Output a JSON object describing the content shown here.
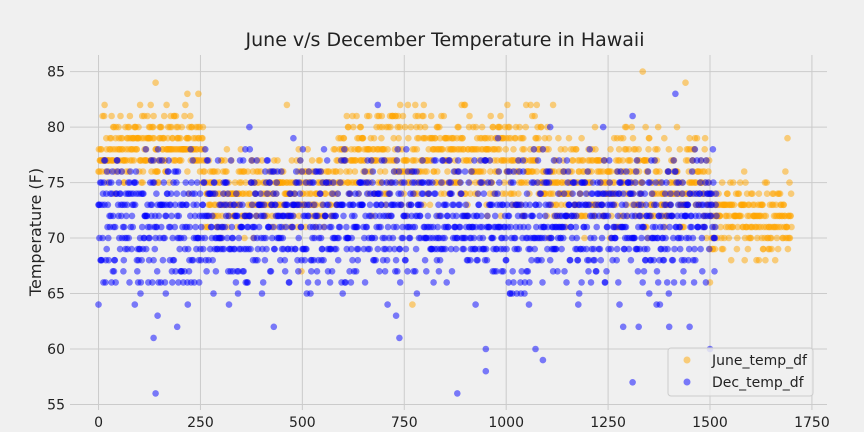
{
  "chart_data": {
    "type": "scatter",
    "title": "June v/s December Temperature in Hawaii",
    "xlabel": "",
    "ylabel": "Temperature (F)",
    "xlim": [
      -70,
      1787
    ],
    "ylim": [
      54.5,
      86.5
    ],
    "xticks": [
      0,
      250,
      500,
      750,
      1000,
      1250,
      1500,
      1750
    ],
    "yticks": [
      55,
      60,
      65,
      70,
      75,
      80,
      85
    ],
    "grid": true,
    "legend_position": "bottom-right",
    "series": [
      {
        "name": "June_temp_df",
        "color": "#ffa500",
        "alpha": 0.5,
        "n": 1700,
        "seed": 11,
        "phases": [
          {
            "x0": 0,
            "x1": 260,
            "base": 78,
            "lo": 74,
            "hi": 82
          },
          {
            "x0": 260,
            "x1": 580,
            "base": 74,
            "lo": 70,
            "hi": 78
          },
          {
            "x0": 580,
            "x1": 1100,
            "base": 77,
            "lo": 72,
            "hi": 82
          },
          {
            "x0": 1100,
            "x1": 1500,
            "base": 75,
            "lo": 70,
            "hi": 80
          },
          {
            "x0": 1500,
            "x1": 1700,
            "base": 72,
            "lo": 68,
            "hi": 76
          }
        ],
        "extremes": [
          {
            "x": 15,
            "y": 82
          },
          {
            "x": 128,
            "y": 82
          },
          {
            "x": 140,
            "y": 84
          },
          {
            "x": 218,
            "y": 83
          },
          {
            "x": 245,
            "y": 83
          },
          {
            "x": 462,
            "y": 82
          },
          {
            "x": 498,
            "y": 67
          },
          {
            "x": 695,
            "y": 81
          },
          {
            "x": 778,
            "y": 81
          },
          {
            "x": 798,
            "y": 82
          },
          {
            "x": 1075,
            "y": 82
          },
          {
            "x": 1115,
            "y": 82
          },
          {
            "x": 1335,
            "y": 85
          },
          {
            "x": 1440,
            "y": 84
          },
          {
            "x": 1585,
            "y": 68
          },
          {
            "x": 1620,
            "y": 68
          },
          {
            "x": 1690,
            "y": 79
          },
          {
            "x": 1700,
            "y": 71
          },
          {
            "x": 770,
            "y": 64
          },
          {
            "x": 1500,
            "y": 66
          }
        ]
      },
      {
        "name": "Dec_temp_df",
        "color": "#0000ff",
        "alpha": 0.5,
        "n": 1517,
        "seed": 29,
        "phases": [
          {
            "x0": 0,
            "x1": 1517,
            "base": 71.5,
            "lo": 64,
            "hi": 78
          }
        ],
        "extremes": [
          {
            "x": 0,
            "y": 64
          },
          {
            "x": 140,
            "y": 56
          },
          {
            "x": 135,
            "y": 61
          },
          {
            "x": 145,
            "y": 63
          },
          {
            "x": 193,
            "y": 62
          },
          {
            "x": 370,
            "y": 80
          },
          {
            "x": 430,
            "y": 62
          },
          {
            "x": 478,
            "y": 79
          },
          {
            "x": 685,
            "y": 82
          },
          {
            "x": 730,
            "y": 63
          },
          {
            "x": 738,
            "y": 61
          },
          {
            "x": 880,
            "y": 56
          },
          {
            "x": 950,
            "y": 58
          },
          {
            "x": 950,
            "y": 60
          },
          {
            "x": 980,
            "y": 79
          },
          {
            "x": 1072,
            "y": 60
          },
          {
            "x": 1090,
            "y": 59
          },
          {
            "x": 1108,
            "y": 80
          },
          {
            "x": 1238,
            "y": 80
          },
          {
            "x": 1278,
            "y": 64
          },
          {
            "x": 1310,
            "y": 57
          },
          {
            "x": 1310,
            "y": 81
          },
          {
            "x": 1415,
            "y": 83
          },
          {
            "x": 1400,
            "y": 62
          },
          {
            "x": 1450,
            "y": 62
          },
          {
            "x": 1500,
            "y": 60
          },
          {
            "x": 1287,
            "y": 62
          },
          {
            "x": 1325,
            "y": 62
          }
        ]
      }
    ]
  }
}
